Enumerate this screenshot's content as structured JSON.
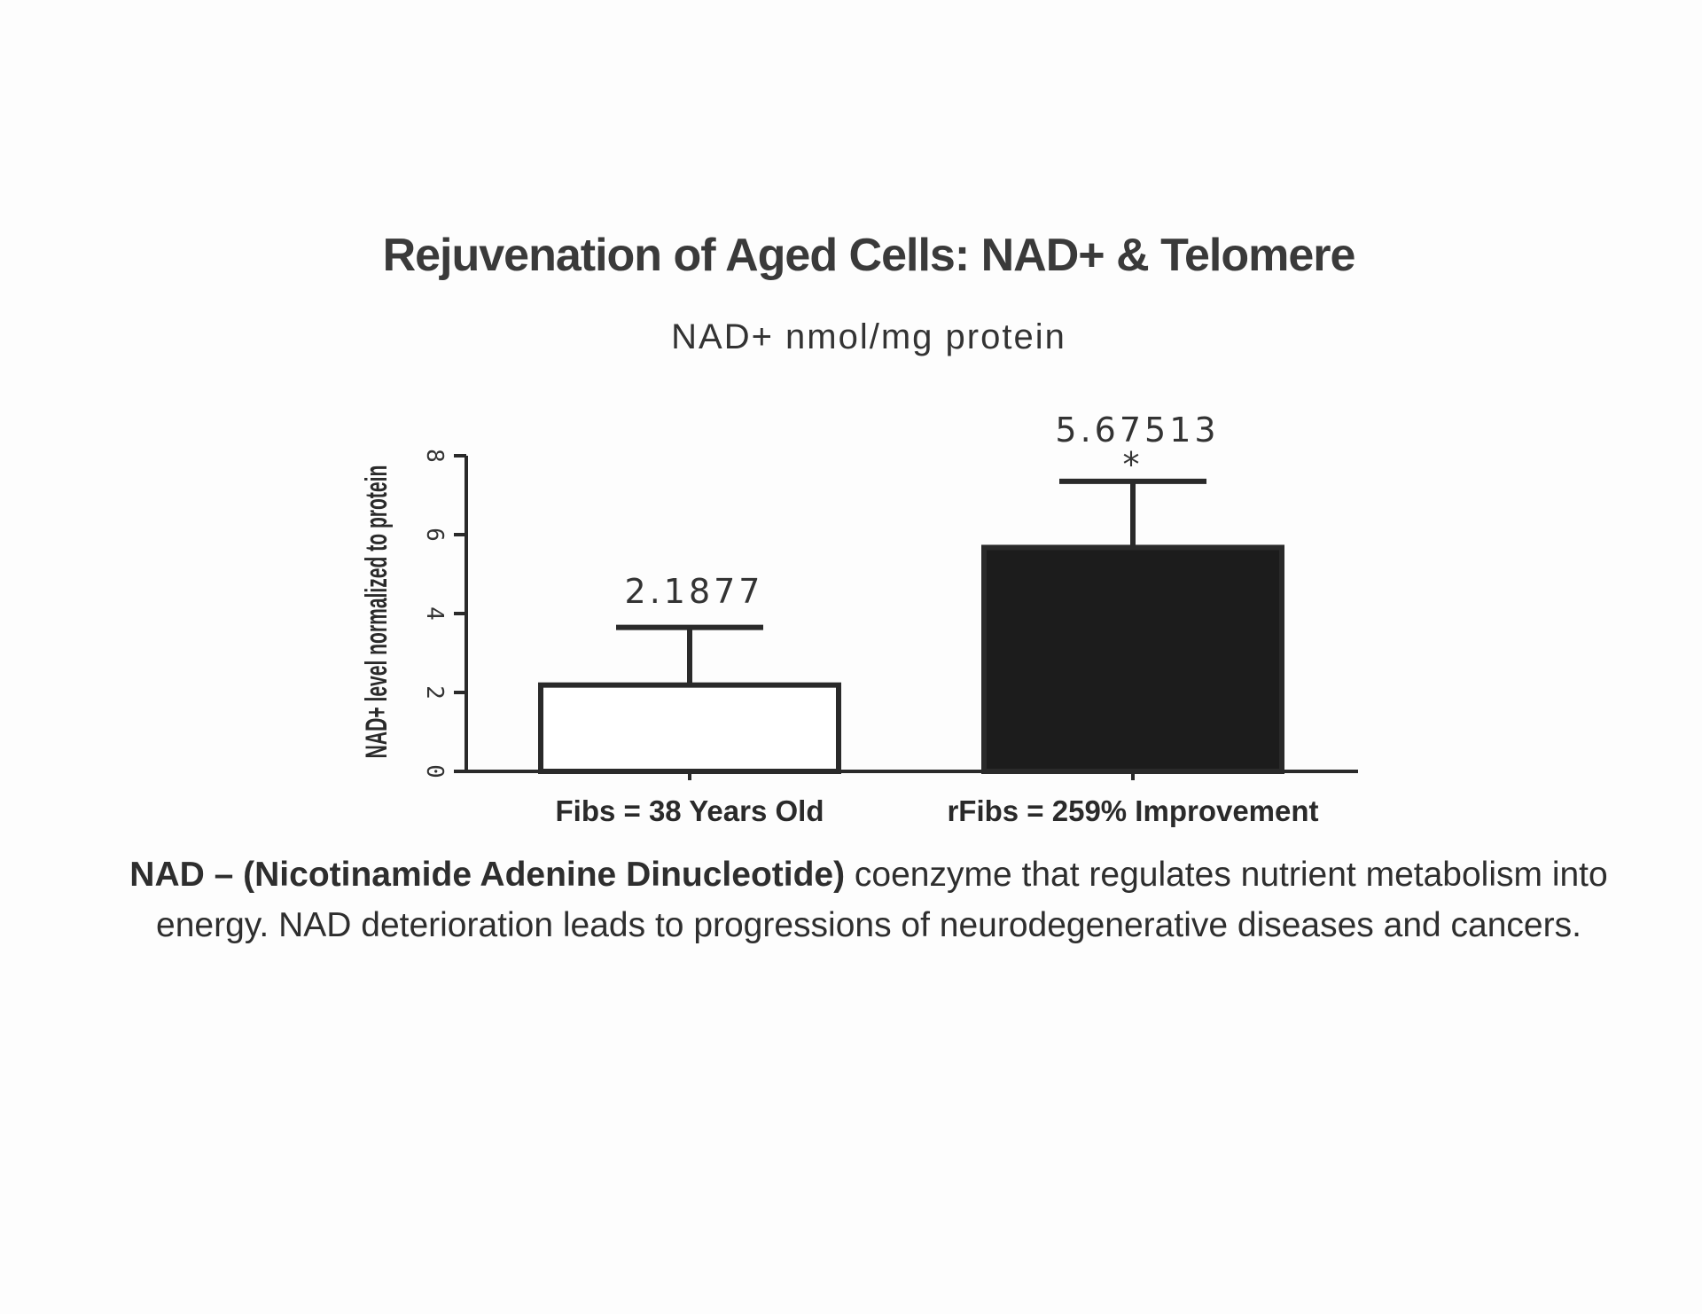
{
  "title": "Rejuvenation of Aged Cells:  NAD+ & Telomere",
  "subtitle": "NAD+ nmol/mg protein",
  "caption": {
    "bold_part": "NAD – (Nicotinamide Adenine Dinucleotide)",
    "line1_rest": " coenzyme that regulates nutrient metabolism into",
    "line2": "energy. NAD deterioration leads to progressions of neurodegenerative diseases and cancers."
  },
  "chart_data": {
    "type": "bar",
    "categories": [
      "Fibs = 38 Years Old",
      "rFibs = 259% Improvement"
    ],
    "values": [
      2.1877,
      5.67513
    ],
    "error_upper": [
      3.65,
      7.35
    ],
    "data_labels": [
      "2.1877",
      "5.67513"
    ],
    "significance": [
      "",
      "*"
    ],
    "bar_colors": [
      "#ffffff",
      "#1c1c1c"
    ],
    "ylabel": "NAD+ level normalized to protein",
    "ylim": [
      0,
      8
    ],
    "yticks": [
      0,
      2,
      4,
      6,
      8
    ],
    "ytick_labels": [
      "0",
      "2",
      "4",
      "6",
      "8"
    ],
    "grid": false
  }
}
